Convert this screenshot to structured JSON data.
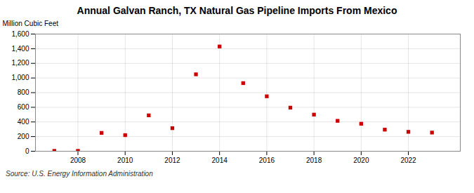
{
  "chart_data": {
    "type": "scatter",
    "title": "Annual Galvan Ranch, TX Natural Gas Pipeline Imports From Mexico",
    "ylabel": "Million Cubic Feet",
    "annotations": [
      "Source: U.S. Energy Information Administration"
    ],
    "x": [
      2007,
      2008,
      2009,
      2010,
      2011,
      2012,
      2013,
      2014,
      2015,
      2016,
      2017,
      2018,
      2019,
      2020,
      2021,
      2022,
      2023
    ],
    "values": [
      5,
      5,
      250,
      220,
      490,
      315,
      1050,
      1430,
      930,
      750,
      595,
      500,
      415,
      375,
      295,
      265,
      255
    ],
    "color": "#cc0000",
    "marker": "square",
    "xlim": [
      2006.2,
      2024.2
    ],
    "xticks": [
      2008,
      2010,
      2012,
      2014,
      2016,
      2018,
      2020,
      2022
    ],
    "ylim": [
      0,
      1600
    ],
    "yticks": [
      0,
      200,
      400,
      600,
      800,
      {
        "value": 1000,
        "label": "1,000"
      },
      {
        "value": 1200,
        "label": "1,200"
      },
      {
        "value": 1400,
        "label": "1,400"
      },
      {
        "value": 1600,
        "label": "1,600"
      }
    ],
    "grid": true
  }
}
